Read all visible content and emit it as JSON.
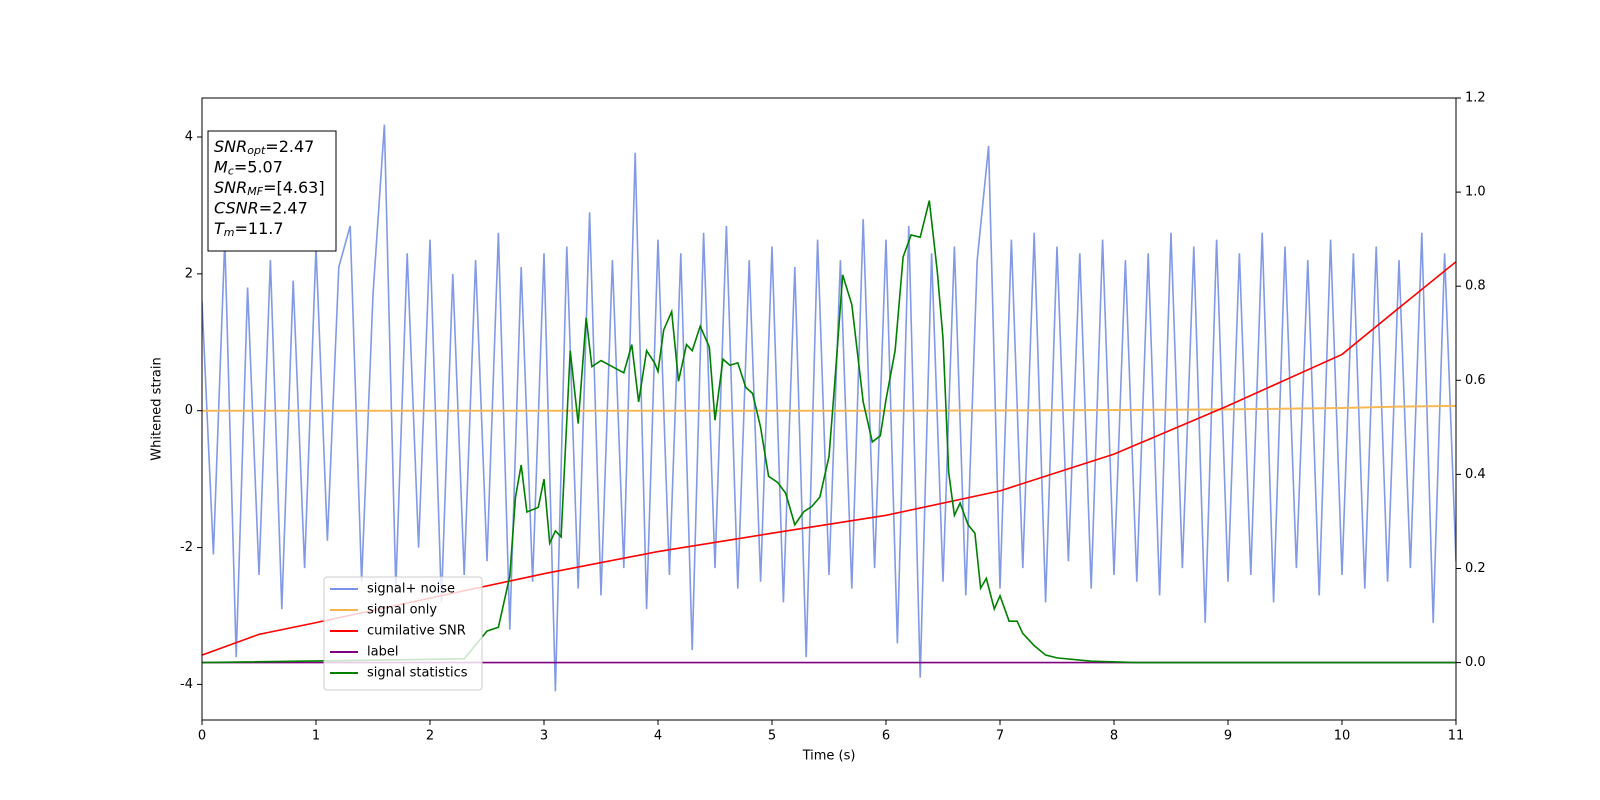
{
  "chart_data": {
    "type": "line",
    "xlabel": "Time (s)",
    "ylabel": "Whitened strain",
    "xlim": [
      0,
      11
    ],
    "xticks": [
      0,
      1,
      2,
      3,
      4,
      5,
      6,
      7,
      8,
      9,
      10,
      11
    ],
    "ylim": [
      -4.52,
      4.57
    ],
    "yticks": [
      -4,
      -2,
      0,
      2,
      4
    ],
    "y2lim": [
      -0.122,
      1.2
    ],
    "y2ticks": [
      {
        "value": 0,
        "label": "0.0"
      },
      {
        "value": 0.2,
        "label": "0.2"
      },
      {
        "value": 0.4,
        "label": "0.4"
      },
      {
        "value": 0.6,
        "label": "0.6"
      },
      {
        "value": 0.8,
        "label": "0.8"
      },
      {
        "value": 1.0,
        "label": "1.0"
      },
      {
        "value": 1.2,
        "label": "1.2"
      }
    ],
    "annotation": [
      {
        "name": "SNR",
        "sub": "opt",
        "text": "=2.47"
      },
      {
        "name": "M",
        "sub": "c",
        "text": "=5.07"
      },
      {
        "name": "SNR",
        "sub": "MF",
        "text": "=[4.63]"
      },
      {
        "name": "CSNR",
        "sub": null,
        "text": "=2.47"
      },
      {
        "name": "T",
        "sub": "m",
        "text": "=11.7"
      }
    ],
    "series": [
      {
        "name": "signal+ noise",
        "color": "#7b93e6",
        "axis": "y",
        "x": [
          0,
          0.1,
          0.2,
          0.3,
          0.4,
          0.5,
          0.6,
          0.7,
          0.8,
          0.9,
          1,
          1.1,
          1.2,
          1.3,
          1.4,
          1.5,
          1.6,
          1.7,
          1.8,
          1.9,
          2,
          2.1,
          2.2,
          2.3,
          2.4,
          2.5,
          2.6,
          2.7,
          2.8,
          2.9,
          3,
          3.1,
          3.2,
          3.3,
          3.4,
          3.5,
          3.6,
          3.7,
          3.8,
          3.9,
          4,
          4.1,
          4.2,
          4.3,
          4.4,
          4.5,
          4.6,
          4.7,
          4.8,
          4.9,
          5,
          5.1,
          5.2,
          5.3,
          5.4,
          5.5,
          5.6,
          5.7,
          5.8,
          5.9,
          6,
          6.1,
          6.2,
          6.3,
          6.4,
          6.5,
          6.6,
          6.7,
          6.8,
          6.9,
          7,
          7.1,
          7.2,
          7.3,
          7.4,
          7.5,
          7.6,
          7.7,
          7.8,
          7.9,
          8,
          8.1,
          8.2,
          8.3,
          8.4,
          8.5,
          8.6,
          8.7,
          8.8,
          8.9,
          9,
          9.1,
          9.2,
          9.3,
          9.4,
          9.5,
          9.6,
          9.7,
          9.8,
          9.9,
          10,
          10.1,
          10.2,
          10.3,
          10.4,
          10.5,
          10.6,
          10.7,
          10.8,
          10.9,
          11
        ],
        "values": [
          1.6,
          -2.1,
          2.5,
          -3.6,
          1.8,
          -2.4,
          2.2,
          -2.9,
          1.9,
          -2.3,
          2.4,
          -1.9,
          2.1,
          2.7,
          -2.5,
          1.7,
          4.18,
          -2.6,
          2.3,
          -2,
          2.5,
          -2.8,
          2,
          -2.4,
          2.2,
          -2.2,
          2.6,
          -3.2,
          2.1,
          -2.5,
          2.3,
          -4.1,
          2.4,
          -2.6,
          2.9,
          -2.7,
          2.2,
          -2.3,
          3.77,
          -2.9,
          2.5,
          -2.4,
          2.3,
          -3.5,
          2.6,
          -2.3,
          2.7,
          -2.6,
          2.2,
          -2.5,
          2.4,
          -2.8,
          2.1,
          -3.6,
          2.5,
          -2.4,
          2.2,
          -2.6,
          2.8,
          -2.3,
          2.5,
          -3.4,
          2.7,
          -3.9,
          2.3,
          -2.5,
          2.4,
          -2.7,
          2.2,
          3.87,
          -2.6,
          2.5,
          -2.3,
          2.6,
          -2.8,
          2.4,
          -2.2,
          2.3,
          -2.6,
          2.5,
          -2.4,
          2.2,
          -2.5,
          2.3,
          -2.7,
          2.6,
          -2.3,
          2.4,
          -3.1,
          2.5,
          -2.5,
          2.3,
          -2.4,
          2.6,
          -2.8,
          2.4,
          -2.3,
          2.2,
          -2.7,
          2.5,
          -2.4,
          2.3,
          -2.6,
          2.4,
          -2.5,
          2.2,
          -2.3,
          2.6,
          -3.1,
          2.3,
          -2.2
        ]
      },
      {
        "name": "signal only",
        "color": "#f5b54e",
        "axis": "y",
        "x": [
          0,
          2,
          4,
          6,
          8,
          9,
          10,
          10.5,
          11
        ],
        "values": [
          0,
          0,
          0,
          0,
          0.01,
          0.02,
          0.04,
          0.06,
          0.07
        ]
      },
      {
        "name": "cumilative SNR",
        "color": "#ff0000",
        "axis": "y2",
        "x": [
          0,
          0.5,
          1,
          2,
          3,
          4,
          5,
          6,
          7,
          8,
          9,
          10,
          10.5,
          11
        ],
        "values": [
          0.016,
          0.06,
          0.085,
          0.137,
          0.189,
          0.236,
          0.275,
          0.313,
          0.365,
          0.443,
          0.546,
          0.655,
          0.754,
          0.852
        ]
      },
      {
        "name": "label",
        "color": "#800080",
        "axis": "y2",
        "x": [
          0,
          11
        ],
        "values": [
          0,
          0
        ]
      },
      {
        "name": "signal statistics",
        "color": "#008000",
        "axis": "y2",
        "x": [
          0,
          2.3,
          2.5,
          2.6,
          2.7,
          2.75,
          2.8,
          2.85,
          2.95,
          3.0,
          3.05,
          3.1,
          3.15,
          3.23,
          3.3,
          3.37,
          3.42,
          3.5,
          3.6,
          3.7,
          3.77,
          3.83,
          3.9,
          3.97,
          4.0,
          4.05,
          4.12,
          4.18,
          4.25,
          4.3,
          4.37,
          4.45,
          4.5,
          4.57,
          4.63,
          4.7,
          4.77,
          4.83,
          4.9,
          4.97,
          5.05,
          5.12,
          5.2,
          5.28,
          5.35,
          5.42,
          5.5,
          5.55,
          5.62,
          5.7,
          5.8,
          5.88,
          5.95,
          6.0,
          6.08,
          6.15,
          6.22,
          6.3,
          6.38,
          6.45,
          6.5,
          6.55,
          6.6,
          6.65,
          6.72,
          6.78,
          6.83,
          6.88,
          6.95,
          7.0,
          7.08,
          7.15,
          7.2,
          7.3,
          7.4,
          7.5,
          7.8,
          8.2,
          11
        ],
        "values": [
          0,
          0.008,
          0.067,
          0.075,
          0.184,
          0.352,
          0.42,
          0.32,
          0.33,
          0.39,
          0.254,
          0.28,
          0.267,
          0.663,
          0.508,
          0.733,
          0.629,
          0.642,
          0.629,
          0.616,
          0.676,
          0.554,
          0.663,
          0.637,
          0.619,
          0.707,
          0.746,
          0.598,
          0.676,
          0.663,
          0.715,
          0.671,
          0.515,
          0.645,
          0.632,
          0.637,
          0.585,
          0.572,
          0.5,
          0.396,
          0.383,
          0.36,
          0.293,
          0.321,
          0.332,
          0.352,
          0.438,
          0.593,
          0.824,
          0.761,
          0.554,
          0.469,
          0.482,
          0.559,
          0.663,
          0.862,
          0.909,
          0.904,
          0.982,
          0.831,
          0.689,
          0.404,
          0.313,
          0.339,
          0.293,
          0.275,
          0.158,
          0.179,
          0.114,
          0.142,
          0.088,
          0.088,
          0.062,
          0.036,
          0.016,
          0.01,
          0.003,
          0,
          0
        ]
      }
    ]
  }
}
